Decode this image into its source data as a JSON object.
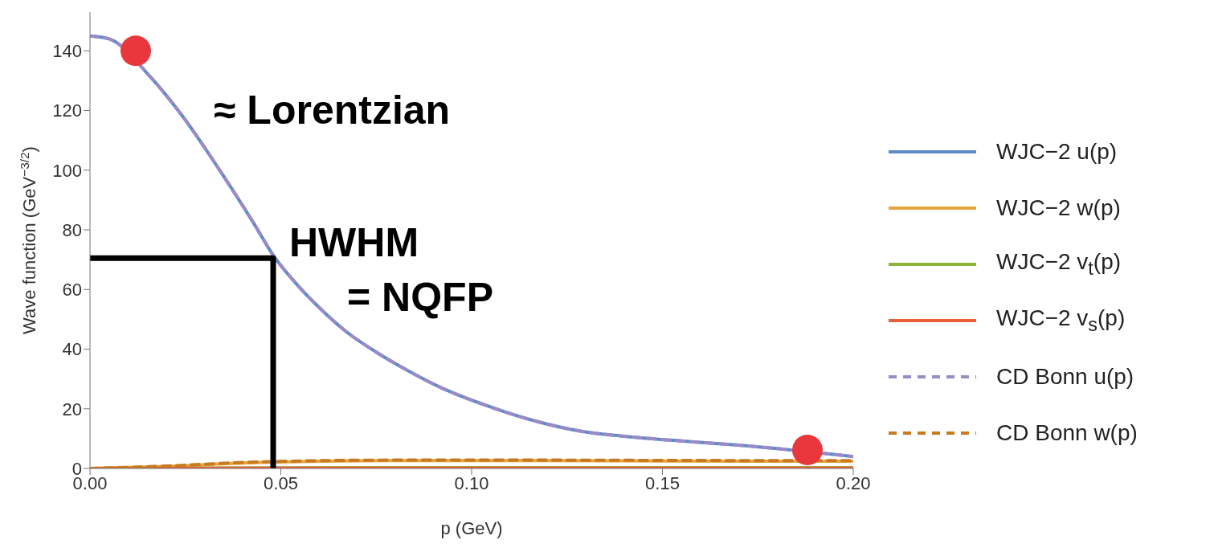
{
  "chart_data": {
    "type": "line",
    "xlabel": "p (GeV)",
    "ylabel": "Wave function (GeV$^{−3/2}$)",
    "xlim": [
      0,
      0.2
    ],
    "xticks": [
      {
        "value": 0,
        "label": "0.00"
      },
      {
        "value": 0.05,
        "label": "0.05"
      },
      {
        "value": 0.1,
        "label": "0.10"
      },
      {
        "value": 0.15,
        "label": "0.15"
      },
      {
        "value": 0.2,
        "label": "0.20"
      }
    ],
    "ylim": [
      0,
      153
    ],
    "yticks": [
      0,
      20,
      40,
      60,
      80,
      100,
      120,
      140
    ],
    "grid": false,
    "legend": "right",
    "series": [
      {
        "name": "WJC−2 u(p)",
        "color": "#5e8ac7",
        "line_style": "solid",
        "x": [
          0,
          0.005,
          0.016,
          0.024,
          0.035,
          0.043,
          0.048,
          0.054,
          0.06,
          0.067,
          0.075,
          0.083,
          0.093,
          0.103,
          0.115,
          0.129,
          0.14,
          0.155,
          0.17,
          0.2
        ],
        "values": [
          145,
          144,
          131,
          118.5,
          98,
          82,
          71.5,
          62,
          54,
          46,
          39,
          33,
          26.5,
          21.5,
          16.5,
          12.4,
          10.8,
          9.2,
          7.8,
          4
        ]
      },
      {
        "name": "WJC−2 w(p)",
        "color": "#e8a33a",
        "line_style": "solid",
        "x": [
          0,
          0.02,
          0.04,
          0.06,
          0.08,
          0.1,
          0.12,
          0.15,
          0.2
        ],
        "values": [
          0,
          0.7,
          1.8,
          2.4,
          2.6,
          2.6,
          2.6,
          2.5,
          2.4
        ]
      },
      {
        "name": "WJC−2 v$_{t}$(p)",
        "color": "#8cb33a",
        "line_style": "solid",
        "x": [
          0,
          0.05,
          0.1,
          0.15,
          0.2
        ],
        "values": [
          0,
          0.2,
          0.3,
          0.3,
          0.3
        ]
      },
      {
        "name": "WJC−2 v$_{s}$(p)",
        "color": "#e8603a",
        "line_style": "solid",
        "x": [
          0,
          0.05,
          0.1,
          0.15,
          0.2
        ],
        "values": [
          0,
          0.1,
          0.1,
          0.1,
          0.1
        ]
      },
      {
        "name": "CD Bonn u(p)",
        "color": "#9a8ac7",
        "line_style": "dashed",
        "x": [
          0,
          0.005,
          0.016,
          0.024,
          0.035,
          0.043,
          0.048,
          0.054,
          0.06,
          0.067,
          0.075,
          0.083,
          0.093,
          0.103,
          0.115,
          0.129,
          0.14,
          0.155,
          0.17,
          0.2
        ],
        "values": [
          145,
          144,
          131,
          118.5,
          98,
          82,
          71.5,
          62,
          54,
          46,
          39,
          33,
          26.5,
          21.5,
          16.5,
          12.4,
          10.8,
          9.2,
          7.8,
          4
        ]
      },
      {
        "name": "CD Bonn w(p)",
        "color": "#c87a20",
        "line_style": "dashed",
        "x": [
          0,
          0.02,
          0.04,
          0.06,
          0.08,
          0.1,
          0.12,
          0.15,
          0.2
        ],
        "values": [
          0,
          0.8,
          2,
          2.6,
          2.8,
          2.8,
          2.8,
          2.7,
          2.6
        ]
      },
      {
        "type": "line",
        "color": "#000000",
        "line_style": "solid",
        "x": [
          0,
          0.048,
          0.048
        ],
        "values": [
          70.5,
          70.5,
          0
        ]
      },
      {
        "type": "scatter",
        "color": "#e8383d",
        "x": [
          0.012,
          0.188
        ],
        "values": [
          140,
          6.2
        ]
      }
    ],
    "annotations": [
      "≈ Lorentzian",
      "HWHM",
      "= NQFP"
    ]
  }
}
